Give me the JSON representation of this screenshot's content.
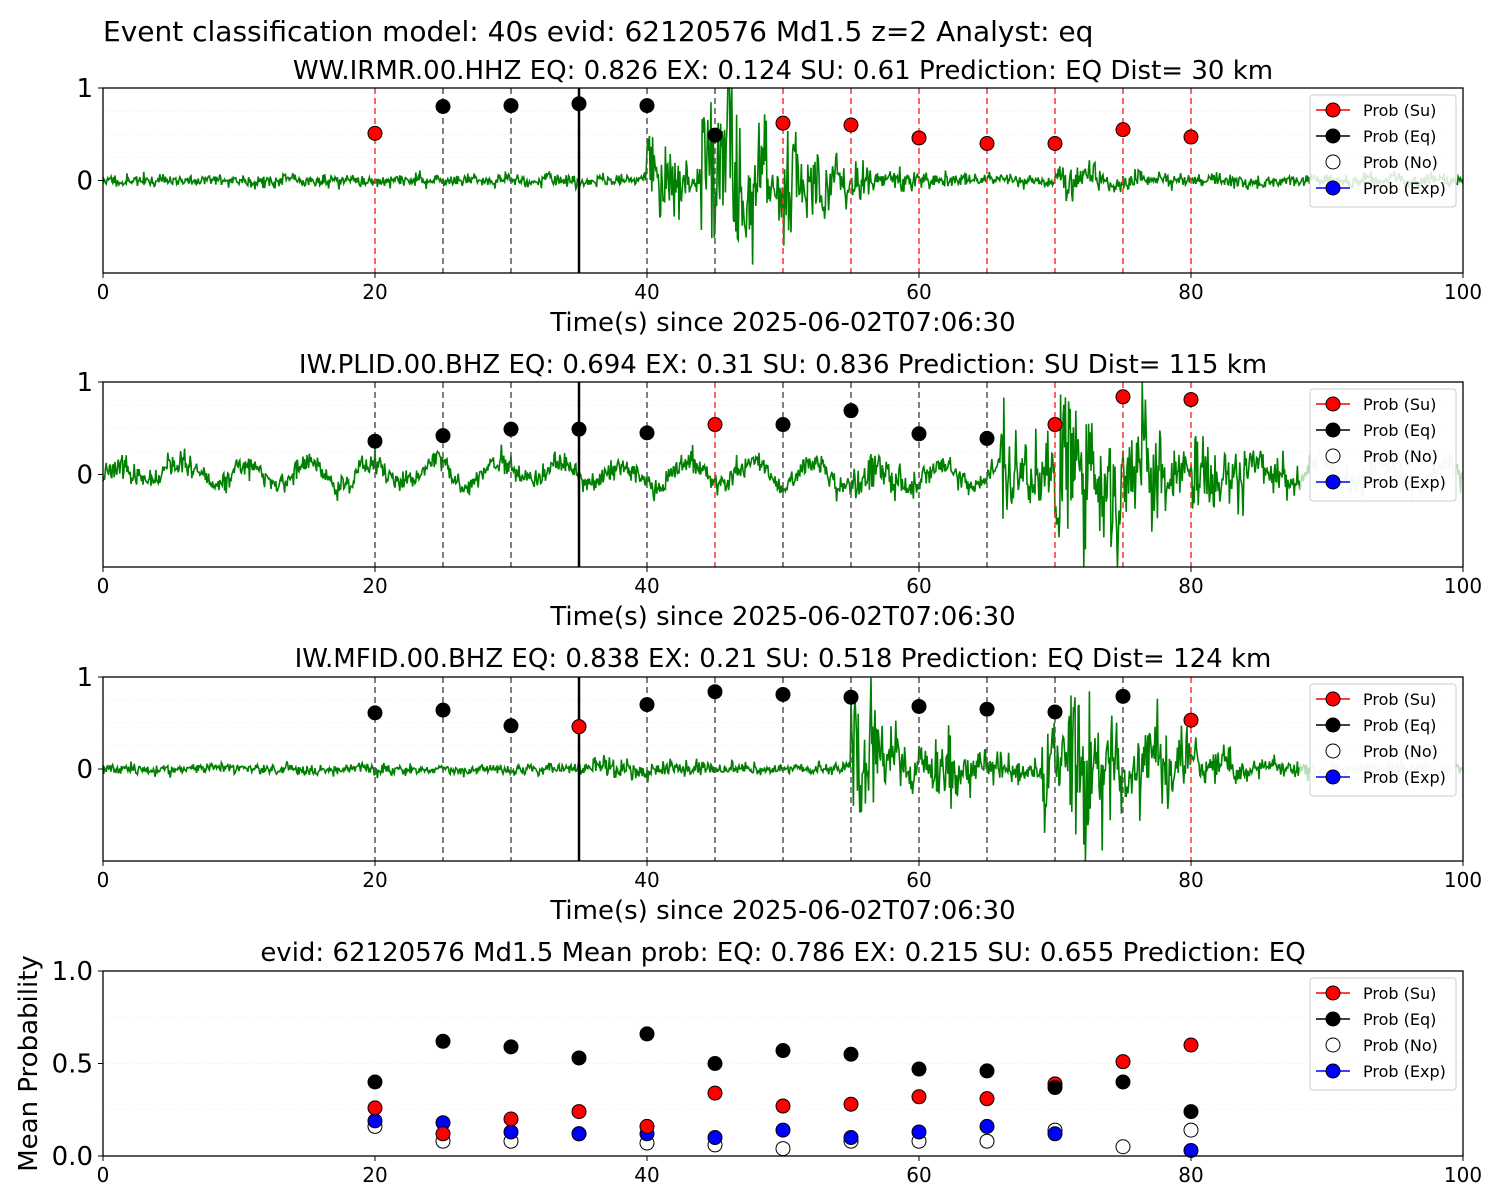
{
  "figure_title": "Event classification model: 40s evid: 62120576 Md1.5 z=2 Analyst: eq",
  "colors": {
    "waveform": "#008000",
    "su": "#ff0000",
    "eq": "#000000",
    "no": "#ffffff",
    "exp": "#0000ff",
    "eq_window_line": "#555555",
    "su_window_line": "#ff3333",
    "reference_line": "#000000"
  },
  "legend": [
    "Prob (Su)",
    "Prob (Eq)",
    "Prob (No)",
    "Prob (Exp)"
  ],
  "chart_data": [
    {
      "type": "scatter",
      "title": "WW.IRMR.00.HHZ   EQ: 0.826  EX: 0.124  SU: 0.61   Prediction: EQ    Dist= 30 km",
      "xlabel": "Time(s) since 2025-06-02T07:06:30",
      "ylabel": "",
      "xlim": [
        0,
        100
      ],
      "ylim": [
        -1,
        1
      ],
      "xticks": [
        "0",
        "20",
        "40",
        "60",
        "80",
        "100"
      ],
      "yticks": [
        "0",
        "1"
      ],
      "reference_line_x": 35,
      "waveform": {
        "onsets": [
          [
            40,
            0.5
          ],
          [
            44,
            0.95
          ],
          [
            46,
            0.45
          ],
          [
            50,
            0.25
          ],
          [
            70,
            0.15
          ]
        ],
        "noise": 0.07,
        "seed": 11,
        "fade_from": null
      },
      "points": [
        {
          "x": 20,
          "y": 0.51,
          "class": "su"
        },
        {
          "x": 25,
          "y": 0.8,
          "class": "eq"
        },
        {
          "x": 30,
          "y": 0.81,
          "class": "eq"
        },
        {
          "x": 35,
          "y": 0.83,
          "class": "eq"
        },
        {
          "x": 40,
          "y": 0.81,
          "class": "eq"
        },
        {
          "x": 45,
          "y": 0.49,
          "class": "eq"
        },
        {
          "x": 50,
          "y": 0.62,
          "class": "su"
        },
        {
          "x": 55,
          "y": 0.6,
          "class": "su"
        },
        {
          "x": 60,
          "y": 0.46,
          "class": "su"
        },
        {
          "x": 65,
          "y": 0.4,
          "class": "su"
        },
        {
          "x": 70,
          "y": 0.4,
          "class": "su"
        },
        {
          "x": 75,
          "y": 0.55,
          "class": "su"
        },
        {
          "x": 80,
          "y": 0.47,
          "class": "su"
        }
      ]
    },
    {
      "type": "scatter",
      "title": "IW.PLID.00.BHZ   EQ: 0.694  EX: 0.31  SU: 0.836   Prediction: SU    Dist= 115 km",
      "xlabel": "Time(s) since 2025-06-02T07:06:30",
      "ylabel": "",
      "xlim": [
        0,
        100
      ],
      "ylim": [
        -1,
        1
      ],
      "xticks": [
        "0",
        "20",
        "40",
        "60",
        "80",
        "100"
      ],
      "yticks": [
        "0",
        "1"
      ],
      "reference_line_x": 35,
      "waveform": {
        "onsets": [
          [
            55,
            0.2
          ],
          [
            66,
            0.7
          ],
          [
            70,
            0.9
          ],
          [
            74,
            0.5
          ],
          [
            80,
            0.3
          ]
        ],
        "noise": 0.12,
        "lowfreq": 0.2,
        "seed": 23,
        "fade_from": 88
      },
      "points": [
        {
          "x": 20,
          "y": 0.36,
          "class": "eq"
        },
        {
          "x": 25,
          "y": 0.42,
          "class": "eq"
        },
        {
          "x": 30,
          "y": 0.49,
          "class": "eq"
        },
        {
          "x": 35,
          "y": 0.49,
          "class": "eq"
        },
        {
          "x": 40,
          "y": 0.45,
          "class": "eq"
        },
        {
          "x": 45,
          "y": 0.54,
          "class": "su"
        },
        {
          "x": 50,
          "y": 0.54,
          "class": "eq"
        },
        {
          "x": 55,
          "y": 0.69,
          "class": "eq"
        },
        {
          "x": 60,
          "y": 0.44,
          "class": "eq"
        },
        {
          "x": 65,
          "y": 0.39,
          "class": "eq"
        },
        {
          "x": 70,
          "y": 0.54,
          "class": "su"
        },
        {
          "x": 75,
          "y": 0.84,
          "class": "su"
        },
        {
          "x": 80,
          "y": 0.81,
          "class": "su"
        }
      ]
    },
    {
      "type": "scatter",
      "title": "IW.MFID.00.BHZ   EQ: 0.838  EX: 0.21  SU: 0.518   Prediction: EQ    Dist= 124 km",
      "xlabel": "Time(s) since 2025-06-02T07:06:30",
      "ylabel": "",
      "xlim": [
        0,
        100
      ],
      "ylim": [
        -1,
        1
      ],
      "xticks": [
        "0",
        "20",
        "40",
        "60",
        "80",
        "100"
      ],
      "yticks": [
        "0",
        "1"
      ],
      "reference_line_x": 35,
      "waveform": {
        "onsets": [
          [
            36,
            0.15
          ],
          [
            55,
            0.75
          ],
          [
            61,
            0.35
          ],
          [
            69,
            0.45
          ],
          [
            71,
            0.95
          ],
          [
            76,
            0.4
          ]
        ],
        "noise": 0.06,
        "seed": 37,
        "fade_from": 88
      },
      "points": [
        {
          "x": 20,
          "y": 0.61,
          "class": "eq"
        },
        {
          "x": 25,
          "y": 0.64,
          "class": "eq"
        },
        {
          "x": 30,
          "y": 0.47,
          "class": "eq"
        },
        {
          "x": 35,
          "y": 0.46,
          "class": "su"
        },
        {
          "x": 40,
          "y": 0.7,
          "class": "eq"
        },
        {
          "x": 45,
          "y": 0.84,
          "class": "eq"
        },
        {
          "x": 50,
          "y": 0.81,
          "class": "eq"
        },
        {
          "x": 55,
          "y": 0.78,
          "class": "eq"
        },
        {
          "x": 60,
          "y": 0.68,
          "class": "eq"
        },
        {
          "x": 65,
          "y": 0.65,
          "class": "eq"
        },
        {
          "x": 70,
          "y": 0.62,
          "class": "eq"
        },
        {
          "x": 75,
          "y": 0.79,
          "class": "eq"
        },
        {
          "x": 80,
          "y": 0.53,
          "class": "su"
        }
      ]
    },
    {
      "type": "scatter",
      "title": "evid: 62120576  Md1.5   Mean prob:   EQ: 0.786  EX: 0.215  SU: 0.655   Prediction: EQ",
      "xlabel": "",
      "ylabel": "Mean Probability",
      "xlim": [
        0,
        100
      ],
      "ylim": [
        0,
        1
      ],
      "xticks": [
        "0",
        "20",
        "40",
        "60",
        "80",
        "100"
      ],
      "yticks": [
        "0.0",
        "0.5",
        "1.0"
      ],
      "x": [
        20,
        25,
        30,
        35,
        40,
        45,
        50,
        55,
        60,
        65,
        70,
        75,
        80
      ],
      "series": [
        {
          "name": "Prob (Su)",
          "class": "su",
          "values": [
            0.26,
            0.12,
            0.2,
            0.24,
            0.16,
            0.34,
            0.27,
            0.28,
            0.32,
            0.31,
            0.39,
            0.51,
            0.6
          ]
        },
        {
          "name": "Prob (Eq)",
          "class": "eq",
          "values": [
            0.4,
            0.62,
            0.59,
            0.53,
            0.66,
            0.5,
            0.57,
            0.55,
            0.47,
            0.46,
            0.37,
            0.4,
            0.24
          ]
        },
        {
          "name": "Prob (No)",
          "class": "no",
          "values": [
            0.16,
            0.08,
            0.08,
            0.12,
            0.07,
            0.06,
            0.04,
            0.08,
            0.08,
            0.08,
            0.14,
            0.05,
            0.14
          ]
        },
        {
          "name": "Prob (Exp)",
          "class": "exp",
          "values": [
            0.19,
            0.18,
            0.13,
            0.12,
            0.12,
            0.1,
            0.14,
            0.1,
            0.13,
            0.16,
            0.12,
            null,
            0.03
          ]
        }
      ]
    }
  ]
}
